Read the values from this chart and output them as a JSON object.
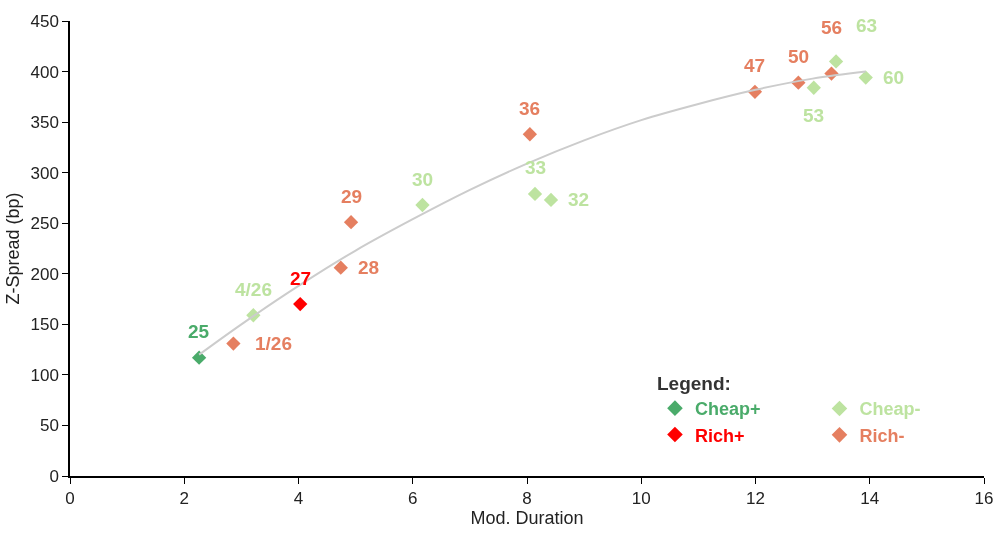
{
  "chart_data": {
    "type": "scatter",
    "xlabel": "Mod. Duration",
    "ylabel": "Z-Spread (bp)",
    "legend_title": "Legend:",
    "legend": "bottom right",
    "marker": "diamond",
    "xlim": [
      0,
      16
    ],
    "xticks": [
      0,
      2,
      4,
      6,
      8,
      10,
      12,
      14,
      16
    ],
    "ylim": [
      0,
      450
    ],
    "yticks": [
      0,
      50,
      100,
      150,
      200,
      250,
      300,
      350,
      400,
      450
    ],
    "series": [
      {
        "name": "Cheap+",
        "color": "#4aab6a",
        "x": [
          2.26
        ],
        "values": [
          117
        ]
      },
      {
        "name": "Cheap-",
        "color": "#bde3a0",
        "x": [
          3.21,
          6.17,
          8.14,
          8.42,
          13.02,
          13.41,
          13.93
        ],
        "values": [
          159,
          268,
          279,
          273,
          384,
          410,
          394
        ]
      },
      {
        "name": "Rich+",
        "color": "#ff0000",
        "x": [
          4.03
        ],
        "values": [
          170
        ]
      },
      {
        "name": "Rich-",
        "color": "#e57f60",
        "x": [
          2.86,
          4.74,
          4.92,
          8.05,
          11.99,
          12.75,
          13.33
        ],
        "values": [
          131,
          206,
          251,
          338,
          380,
          389,
          398
        ]
      },
      {
        "type": "line",
        "color": "#cccccc",
        "marker": "none",
        "x": [
          2.26,
          3,
          4,
          5,
          6,
          7,
          8,
          9,
          10,
          11,
          12,
          13,
          13.93
        ],
        "values": [
          120,
          150,
          188,
          223,
          254,
          283,
          309,
          332,
          352,
          368,
          382,
          393,
          400
        ]
      }
    ],
    "annotations": [
      {
        "text": "25",
        "x": 2.26,
        "y": 117
      },
      {
        "text": "1/26",
        "x": 2.86,
        "y": 131
      },
      {
        "text": "4/26",
        "x": 3.21,
        "y": 159
      },
      {
        "text": "27",
        "x": 4.03,
        "y": 170
      },
      {
        "text": "28",
        "x": 4.74,
        "y": 206
      },
      {
        "text": "29",
        "x": 4.92,
        "y": 251
      },
      {
        "text": "30",
        "x": 6.17,
        "y": 268
      },
      {
        "text": "36",
        "x": 8.05,
        "y": 338
      },
      {
        "text": "33",
        "x": 8.14,
        "y": 279
      },
      {
        "text": "32",
        "x": 8.42,
        "y": 273
      },
      {
        "text": "47",
        "x": 11.99,
        "y": 380
      },
      {
        "text": "50",
        "x": 12.75,
        "y": 389
      },
      {
        "text": "53",
        "x": 13.02,
        "y": 384
      },
      {
        "text": "56",
        "x": 13.33,
        "y": 398
      },
      {
        "text": "63",
        "x": 13.41,
        "y": 410
      },
      {
        "text": "60",
        "x": 13.93,
        "y": 394
      }
    ]
  }
}
